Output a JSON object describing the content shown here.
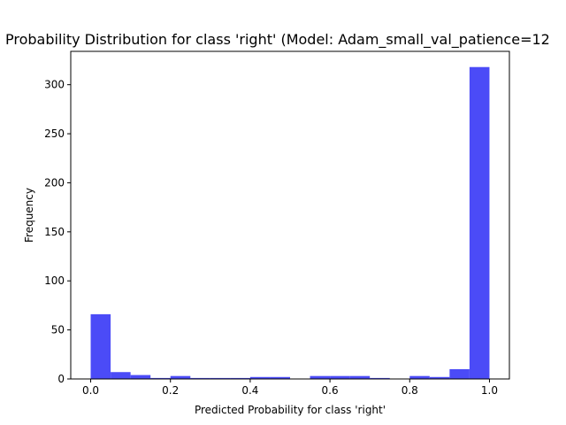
{
  "chart_data": {
    "type": "bar",
    "title": "Probability Distribution for class 'right' (Model: Adam_small_val_patience=12",
    "xlabel": "Predicted Probability for class 'right'",
    "ylabel": "Frequency",
    "xlim": [
      -0.05,
      1.05
    ],
    "ylim": [
      0,
      334
    ],
    "xticks": [
      0.0,
      0.2,
      0.4,
      0.6,
      0.8,
      1.0
    ],
    "xtick_labels": [
      "0.0",
      "0.2",
      "0.4",
      "0.6",
      "0.8",
      "1.0"
    ],
    "yticks": [
      0,
      50,
      100,
      150,
      200,
      250,
      300
    ],
    "ytick_labels": [
      "0",
      "50",
      "100",
      "150",
      "200",
      "250",
      "300"
    ],
    "bin_edges": [
      0.0,
      0.05,
      0.1,
      0.15,
      0.2,
      0.25,
      0.3,
      0.35,
      0.4,
      0.45,
      0.5,
      0.55,
      0.6,
      0.65,
      0.7,
      0.75,
      0.8,
      0.85,
      0.9,
      0.95,
      1.0
    ],
    "values": [
      66,
      7,
      4,
      1,
      3,
      1,
      1,
      1,
      2,
      2,
      0,
      3,
      3,
      3,
      1,
      0,
      3,
      2,
      10,
      318
    ],
    "bar_color": "#4b4bf7",
    "grid": false,
    "legend": "none"
  }
}
